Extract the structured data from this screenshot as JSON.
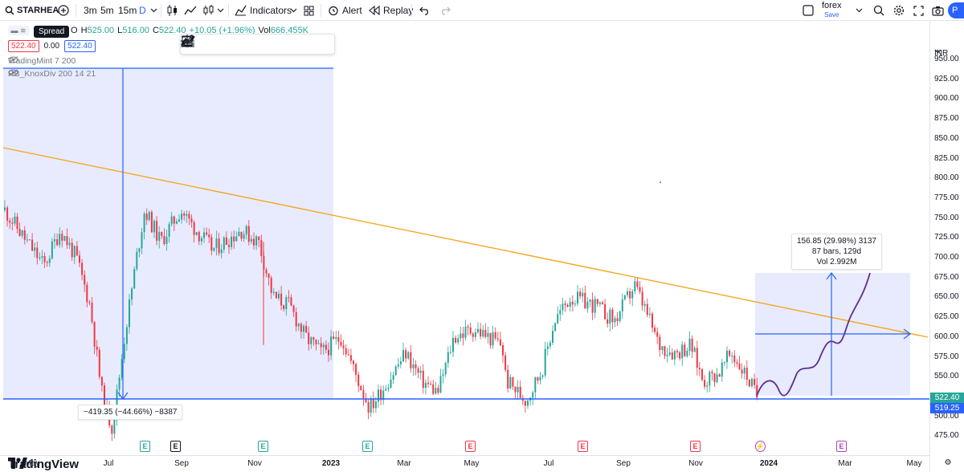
{
  "toolbar": {
    "symbol": "STARHEA",
    "intervals": [
      "3m",
      "5m",
      "15m",
      "D"
    ],
    "active_interval": "D",
    "indicators_label": "Indicators",
    "alert_label": "Alert",
    "replay_label": "Replay",
    "layout_name": "forex",
    "layout_save": "Save",
    "publish_short": "P"
  },
  "legend": {
    "spread_tooltip": "Spread",
    "open_prefix": "O",
    "open": "",
    "high_prefix": "H",
    "high": "525.00",
    "low_prefix": "L",
    "low": "516.00",
    "close_prefix": "C",
    "close": "522.40",
    "change": "+10.05 (+1.96%)",
    "volume_prefix": "Vol",
    "volume": "666.455K",
    "sell_price": "522.40",
    "spread": "0.00",
    "buy_price": "522.40",
    "indicator_1": "TradingMint 7 200",
    "indicator_2": "RB_KnoxDiv 200 14 21"
  },
  "price_scale": {
    "currency": "INR",
    "ticks": [
      "950.00",
      "925.00",
      "900.00",
      "875.00",
      "850.00",
      "825.00",
      "800.00",
      "775.00",
      "750.00",
      "725.00",
      "700.00",
      "675.00",
      "650.00",
      "625.00",
      "600.00",
      "575.00",
      "550.00",
      "525.00",
      "500.00",
      "475.00"
    ],
    "last_price": "522.40",
    "line_price": "519.25"
  },
  "time_axis": {
    "labels": [
      {
        "text": "May",
        "year": false
      },
      {
        "text": "Jul",
        "year": false
      },
      {
        "text": "Sep",
        "year": false
      },
      {
        "text": "Nov",
        "year": false
      },
      {
        "text": "2023",
        "year": true
      },
      {
        "text": "Mar",
        "year": false
      },
      {
        "text": "May",
        "year": false
      },
      {
        "text": "Jul",
        "year": false
      },
      {
        "text": "Sep",
        "year": false
      },
      {
        "text": "Nov",
        "year": false
      },
      {
        "text": "2024",
        "year": true
      },
      {
        "text": "Mar",
        "year": false
      },
      {
        "text": "May",
        "year": false
      }
    ]
  },
  "events": [
    {
      "letter": "E",
      "kind": "e-green"
    },
    {
      "letter": "E",
      "kind": "e-dark"
    },
    {
      "letter": "E",
      "kind": "e-green"
    },
    {
      "letter": "E",
      "kind": "e-green"
    },
    {
      "letter": "E",
      "kind": "e-red"
    },
    {
      "letter": "E",
      "kind": "e-red"
    },
    {
      "letter": "E",
      "kind": "e-red"
    },
    {
      "letter": "⚡",
      "kind": "e-bolt"
    },
    {
      "letter": "E",
      "kind": "e-purple"
    }
  ],
  "measure_left": {
    "text": "−419.35 (−44.66%) −8387"
  },
  "measure_right": {
    "line1": "156.85 (29.98%) 3137",
    "line2": "87 bars, 129d",
    "line3": "Vol 2.992M"
  },
  "brand": "TradingView",
  "colors": {
    "up": "#26a69a",
    "down": "#f23645",
    "accent": "#2962ff",
    "trendline": "#f5a623",
    "projection": "#5c2d91",
    "range_fill": "#e3e8fd"
  }
}
